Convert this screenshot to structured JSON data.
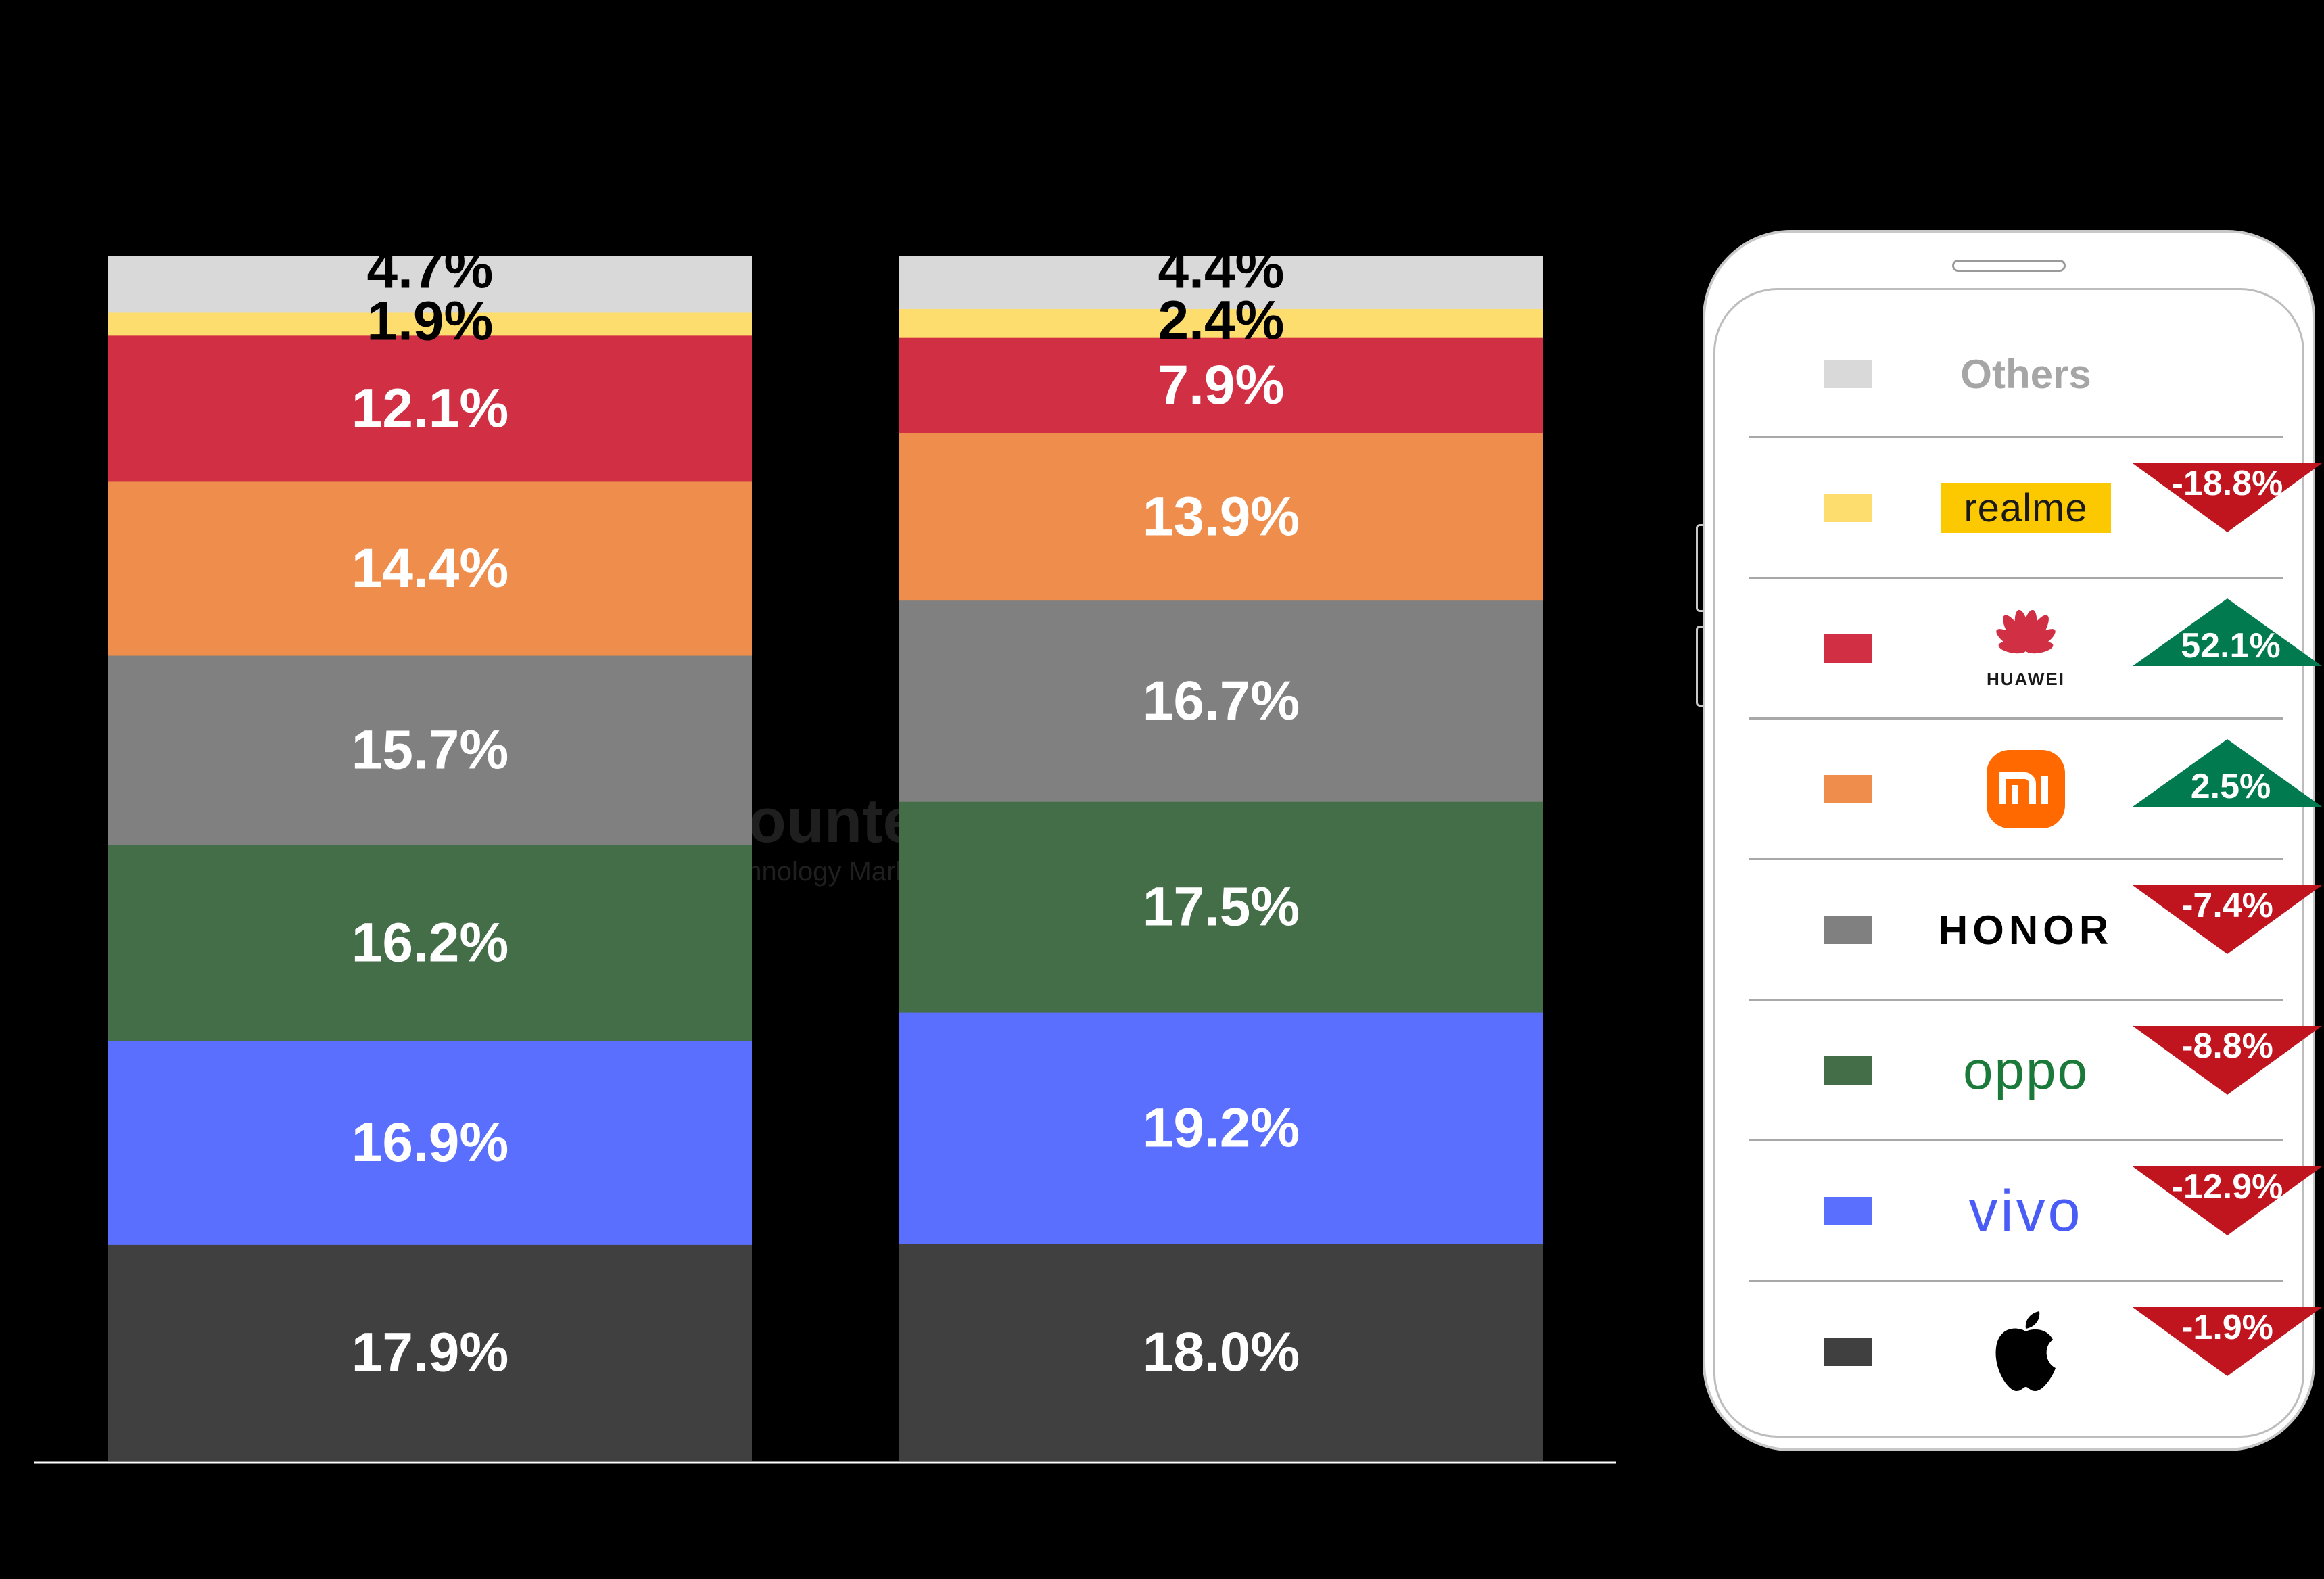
{
  "chart_data": {
    "type": "bar",
    "stacked": true,
    "categories": [
      "",
      ""
    ],
    "series": [
      {
        "brand": "apple",
        "values": [
          17.9,
          18.0
        ],
        "color": "#404040",
        "label_color": "#ffffff"
      },
      {
        "brand": "vivo",
        "values": [
          16.9,
          19.2
        ],
        "color": "#5b6ffe",
        "label_color": "#ffffff"
      },
      {
        "brand": "oppo",
        "values": [
          16.2,
          17.5
        ],
        "color": "#446e47",
        "label_color": "#ffffff"
      },
      {
        "brand": "honor",
        "values": [
          15.7,
          16.7
        ],
        "color": "#808080",
        "label_color": "#ffffff"
      },
      {
        "brand": "xiaomi",
        "values": [
          14.4,
          13.9
        ],
        "color": "#ee8d4c",
        "label_color": "#ffffff"
      },
      {
        "brand": "huawei",
        "values": [
          12.1,
          7.9
        ],
        "color": "#d13044",
        "label_color": "#ffffff"
      },
      {
        "brand": "realme",
        "values": [
          1.9,
          2.4
        ],
        "color": "#fedd6f",
        "label_color": "#000000"
      },
      {
        "brand": "others",
        "values": [
          4.7,
          4.4
        ],
        "color": "#d9d9d9",
        "label_color": "#000000"
      }
    ],
    "data_labels": [
      [
        "17.9%",
        "18.0%"
      ],
      [
        "16.9%",
        "19.2%"
      ],
      [
        "16.2%",
        "17.5%"
      ],
      [
        "15.7%",
        "16.7%"
      ],
      [
        "14.4%",
        "13.9%"
      ],
      [
        "12.1%",
        "7.9%"
      ],
      [
        "1.9%",
        "2.4%"
      ],
      [
        "4.7%",
        "4.4%"
      ]
    ],
    "ylim": [
      0,
      100
    ],
    "grid": false,
    "legend_placement": "right (phone-shaped panel)"
  },
  "watermark": {
    "name": "Counterpoint",
    "tagline": "Technology Market Research"
  },
  "legend": {
    "rows": [
      {
        "brand": "others",
        "label": "Others",
        "color": "#d9d9d9",
        "icon": "others-text",
        "change": null,
        "direction": null
      },
      {
        "brand": "realme",
        "label": "realme",
        "color": "#fedd6f",
        "icon": "realme-logo",
        "change": "-18.8%",
        "direction": "down"
      },
      {
        "brand": "huawei",
        "label": "HUAWEI",
        "color": "#d13044",
        "icon": "huawei-logo",
        "change": "52.1%",
        "direction": "up"
      },
      {
        "brand": "xiaomi",
        "label": "mi",
        "color": "#ee8d4c",
        "icon": "xiaomi-logo",
        "change": "2.5%",
        "direction": "up"
      },
      {
        "brand": "honor",
        "label": "HONOR",
        "color": "#808080",
        "icon": "honor-logo",
        "change": "-7.4%",
        "direction": "down"
      },
      {
        "brand": "oppo",
        "label": "oppo",
        "color": "#446e47",
        "icon": "oppo-logo",
        "change": "-8.8%",
        "direction": "down"
      },
      {
        "brand": "vivo",
        "label": "vivo",
        "color": "#5b6ffe",
        "icon": "vivo-logo",
        "change": "-12.9%",
        "direction": "down"
      },
      {
        "brand": "apple",
        "label": "",
        "color": "#404040",
        "icon": "apple-logo",
        "change": "-1.9%",
        "direction": "down"
      }
    ],
    "up_color": "#017a50",
    "down_color": "#c0141f"
  }
}
